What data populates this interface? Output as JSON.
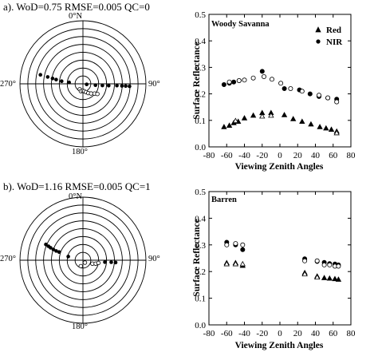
{
  "panels": [
    {
      "polar": {
        "title": "a). WoD=0.75 RMSE=0.005 QC=0",
        "labels": {
          "top": "0°N",
          "right": "90°",
          "bottom": "180°",
          "left": "270°"
        },
        "rings": 8,
        "filled_points": [
          {
            "az": 282,
            "r": 0.69
          },
          {
            "az": 281,
            "r": 0.57
          },
          {
            "az": 280,
            "r": 0.49
          },
          {
            "az": 279,
            "r": 0.43
          },
          {
            "az": 277,
            "r": 0.34
          },
          {
            "az": 276,
            "r": 0.22
          },
          {
            "az": 98,
            "r": 0.06
          },
          {
            "az": 96,
            "r": 0.2
          },
          {
            "az": 95,
            "r": 0.31
          },
          {
            "az": 94,
            "r": 0.41
          },
          {
            "az": 93,
            "r": 0.54
          },
          {
            "az": 93,
            "r": 0.62
          },
          {
            "az": 93,
            "r": 0.68
          },
          {
            "az": 93,
            "r": 0.74
          }
        ],
        "open_points": [
          {
            "az": 210,
            "r": 0.1
          },
          {
            "az": 195,
            "r": 0.12
          },
          {
            "az": 180,
            "r": 0.11
          },
          {
            "az": 170,
            "r": 0.12
          },
          {
            "az": 160,
            "r": 0.14
          },
          {
            "az": 150,
            "r": 0.17
          },
          {
            "az": 140,
            "r": 0.2
          },
          {
            "az": 130,
            "r": 0.24
          },
          {
            "az": 125,
            "r": 0.28
          }
        ]
      },
      "chart": {
        "label": "Woody Savanna",
        "legend": [
          {
            "marker": "triangle",
            "label": "Red"
          },
          {
            "marker": "circle",
            "label": "NIR"
          }
        ]
      }
    },
    {
      "polar": {
        "title": "b). WoD=1.16 RMSE=0.005 QC=1",
        "labels": {
          "top": "0°N",
          "right": "90°",
          "bottom": "180°",
          "left": "270°"
        },
        "rings": 8,
        "filled_points": [
          {
            "az": 293,
            "r": 0.64
          },
          {
            "az": 292,
            "r": 0.59
          },
          {
            "az": 291,
            "r": 0.55
          },
          {
            "az": 290,
            "r": 0.5
          },
          {
            "az": 289,
            "r": 0.45
          },
          {
            "az": 289,
            "r": 0.4
          },
          {
            "az": 284,
            "r": 0.24
          },
          {
            "az": 95,
            "r": 0.35
          },
          {
            "az": 94,
            "r": 0.45
          },
          {
            "az": 94,
            "r": 0.52
          }
        ],
        "open_points": [
          {
            "az": 200,
            "r": 0.1
          },
          {
            "az": 140,
            "r": 0.05
          },
          {
            "az": 110,
            "r": 0.16
          },
          {
            "az": 105,
            "r": 0.21
          },
          {
            "az": 100,
            "r": 0.25
          }
        ]
      },
      "chart": {
        "label": "Barren",
        "legend": []
      }
    }
  ],
  "chart_data": [
    {
      "type": "scatter",
      "title": "Woody Savanna",
      "xlabel": "Viewing Zenith Angles",
      "ylabel": "Surface Reflectance",
      "xlim": [
        -80,
        80
      ],
      "ylim": [
        0.0,
        0.5
      ],
      "xticks": [
        -80,
        -60,
        -40,
        -20,
        0,
        20,
        40,
        60,
        80
      ],
      "yticks": [
        0.0,
        0.1,
        0.2,
        0.3,
        0.4,
        0.5
      ],
      "legend_position": "top-right",
      "series": [
        {
          "name": "Red",
          "marker": "triangle",
          "fill": "filled",
          "x": [
            -63,
            -57,
            -52,
            -47,
            -40,
            -30,
            -20,
            -10,
            5,
            15,
            25,
            35,
            45,
            52,
            58,
            64
          ],
          "y": [
            0.075,
            0.08,
            0.09,
            0.095,
            0.108,
            0.118,
            0.128,
            0.128,
            0.12,
            0.105,
            0.095,
            0.085,
            0.075,
            0.07,
            0.065,
            0.058
          ]
        },
        {
          "marker": "triangle",
          "fill": "open",
          "x": [
            -50,
            -20,
            -10,
            64
          ],
          "y": [
            0.098,
            0.115,
            0.118,
            0.052
          ]
        },
        {
          "name": "NIR",
          "marker": "circle",
          "fill": "filled",
          "x": [
            -63,
            -57,
            -52,
            -46,
            -20,
            5,
            22,
            34,
            44,
            54,
            64
          ],
          "y": [
            0.235,
            0.24,
            0.245,
            0.25,
            0.285,
            0.22,
            0.215,
            0.2,
            0.19,
            0.185,
            0.18
          ]
        },
        {
          "marker": "circle",
          "fill": "open",
          "x": [
            -57,
            -46,
            -40,
            -30,
            -18,
            -9,
            1,
            12,
            25,
            44,
            54,
            64
          ],
          "y": [
            0.245,
            0.25,
            0.252,
            0.26,
            0.265,
            0.255,
            0.24,
            0.22,
            0.21,
            0.195,
            0.185,
            0.17
          ]
        }
      ]
    },
    {
      "type": "scatter",
      "title": "Barren",
      "xlabel": "Viewing Zenith Angles",
      "ylabel": "Surface Reflectance",
      "xlim": [
        -80,
        80
      ],
      "ylim": [
        0.0,
        0.5
      ],
      "xticks": [
        -80,
        -60,
        -40,
        -20,
        0,
        20,
        40,
        60,
        80
      ],
      "yticks": [
        0.0,
        0.1,
        0.2,
        0.3,
        0.4,
        0.5
      ],
      "series": [
        {
          "marker": "triangle",
          "fill": "filled",
          "x": [
            -60,
            -50,
            -42,
            28,
            42,
            50,
            56,
            62,
            66
          ],
          "y": [
            0.232,
            0.232,
            0.222,
            0.195,
            0.182,
            0.176,
            0.174,
            0.172,
            0.17
          ]
        },
        {
          "marker": "triangle",
          "fill": "open",
          "x": [
            -60,
            -50,
            -42,
            28,
            42
          ],
          "y": [
            0.228,
            0.228,
            0.228,
            0.19,
            0.178
          ]
        },
        {
          "marker": "circle",
          "fill": "filled",
          "x": [
            -60,
            -50,
            -42,
            28,
            42,
            50,
            56,
            62,
            66
          ],
          "y": [
            0.31,
            0.3,
            0.282,
            0.248,
            0.238,
            0.234,
            0.23,
            0.228,
            0.225
          ]
        },
        {
          "marker": "circle",
          "fill": "open",
          "x": [
            -60,
            -50,
            -42,
            28,
            42,
            50,
            56,
            62,
            66
          ],
          "y": [
            0.3,
            0.305,
            0.3,
            0.24,
            0.24,
            0.225,
            0.225,
            0.22,
            0.22
          ]
        }
      ]
    }
  ]
}
